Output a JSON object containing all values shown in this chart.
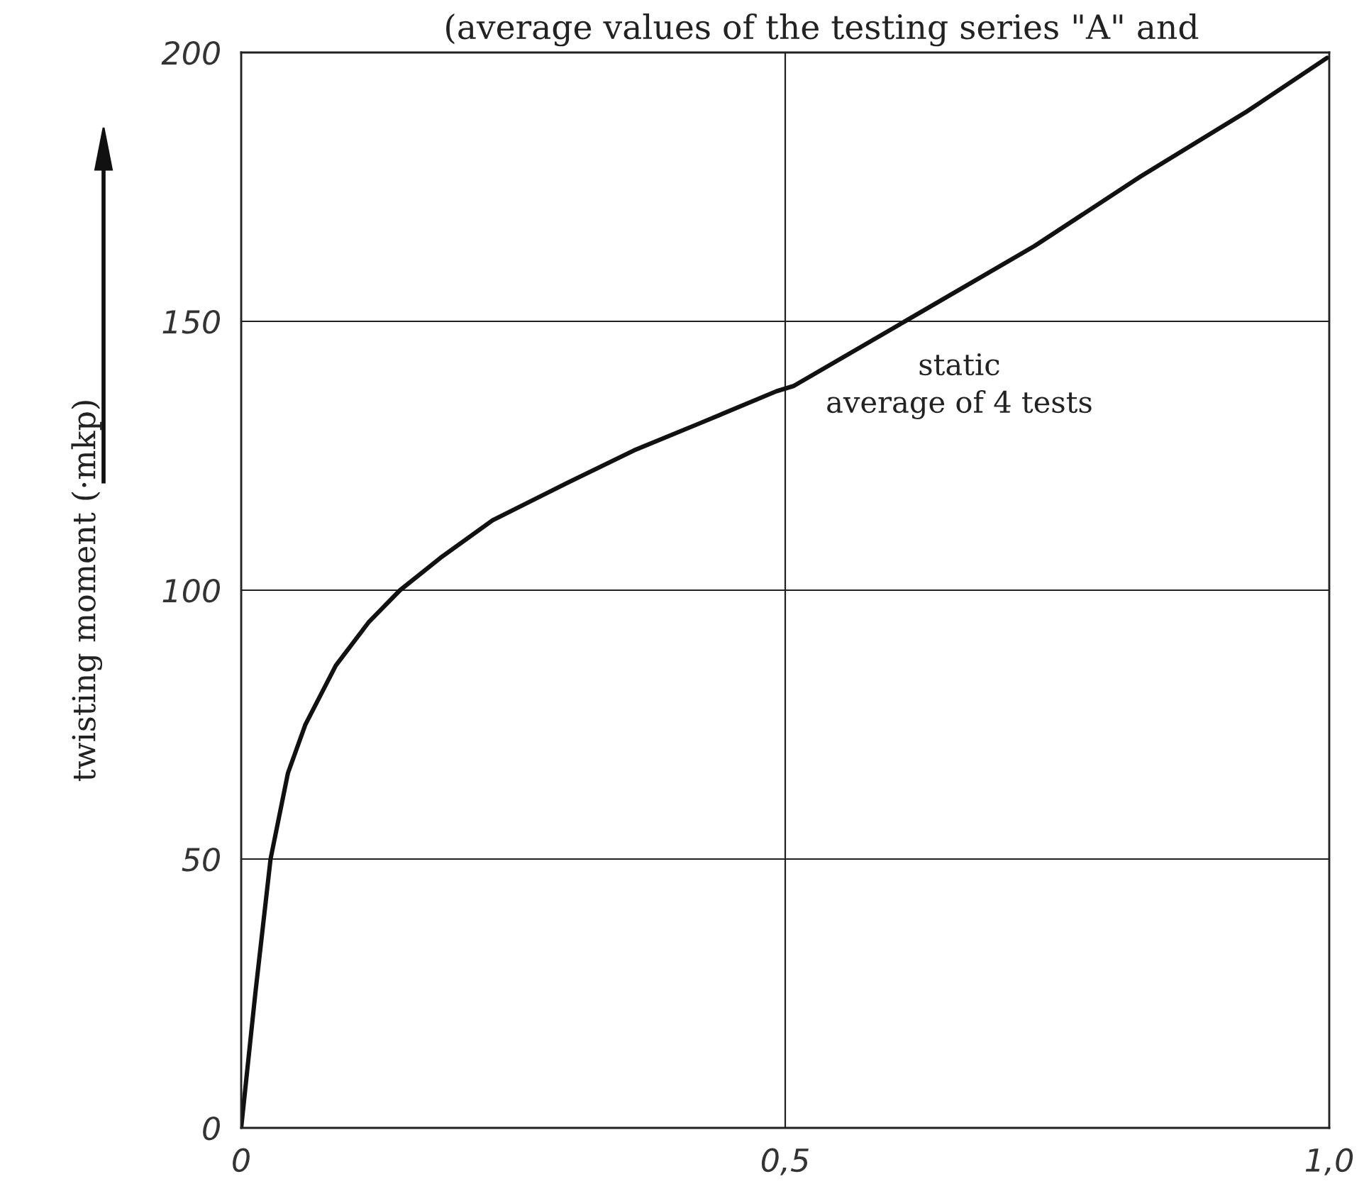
{
  "chart_data": {
    "type": "line",
    "title": "(average values of the testing series \"A\" and",
    "ylabel": "twisting moment (·mkp)",
    "annotations": [
      "static\naverage of 4 tests"
    ],
    "series": [
      {
        "color": "#111111",
        "x": [
          0,
          0.013,
          0.027,
          0.043,
          0.059,
          0.087,
          0.117,
          0.146,
          0.183,
          0.231,
          0.3,
          0.361,
          0.421,
          0.492,
          0.508,
          0.61,
          0.729,
          0.827,
          0.924,
          0.998
        ],
        "values": [
          0,
          25,
          50,
          66,
          75,
          86,
          94,
          100,
          106,
          113,
          120,
          126,
          131,
          137,
          138,
          150,
          164,
          177,
          189,
          199
        ]
      }
    ],
    "xlim": [
      0,
      1.0
    ],
    "ylim": [
      0,
      200
    ],
    "xticks": [
      0,
      {
        "value": 0.5,
        "label": "0,5"
      },
      {
        "value": 1.0,
        "label": "1,0"
      }
    ],
    "yticks": [
      0,
      50,
      100,
      150,
      200
    ],
    "grid": true,
    "line_style": "solid",
    "marker": "none"
  }
}
